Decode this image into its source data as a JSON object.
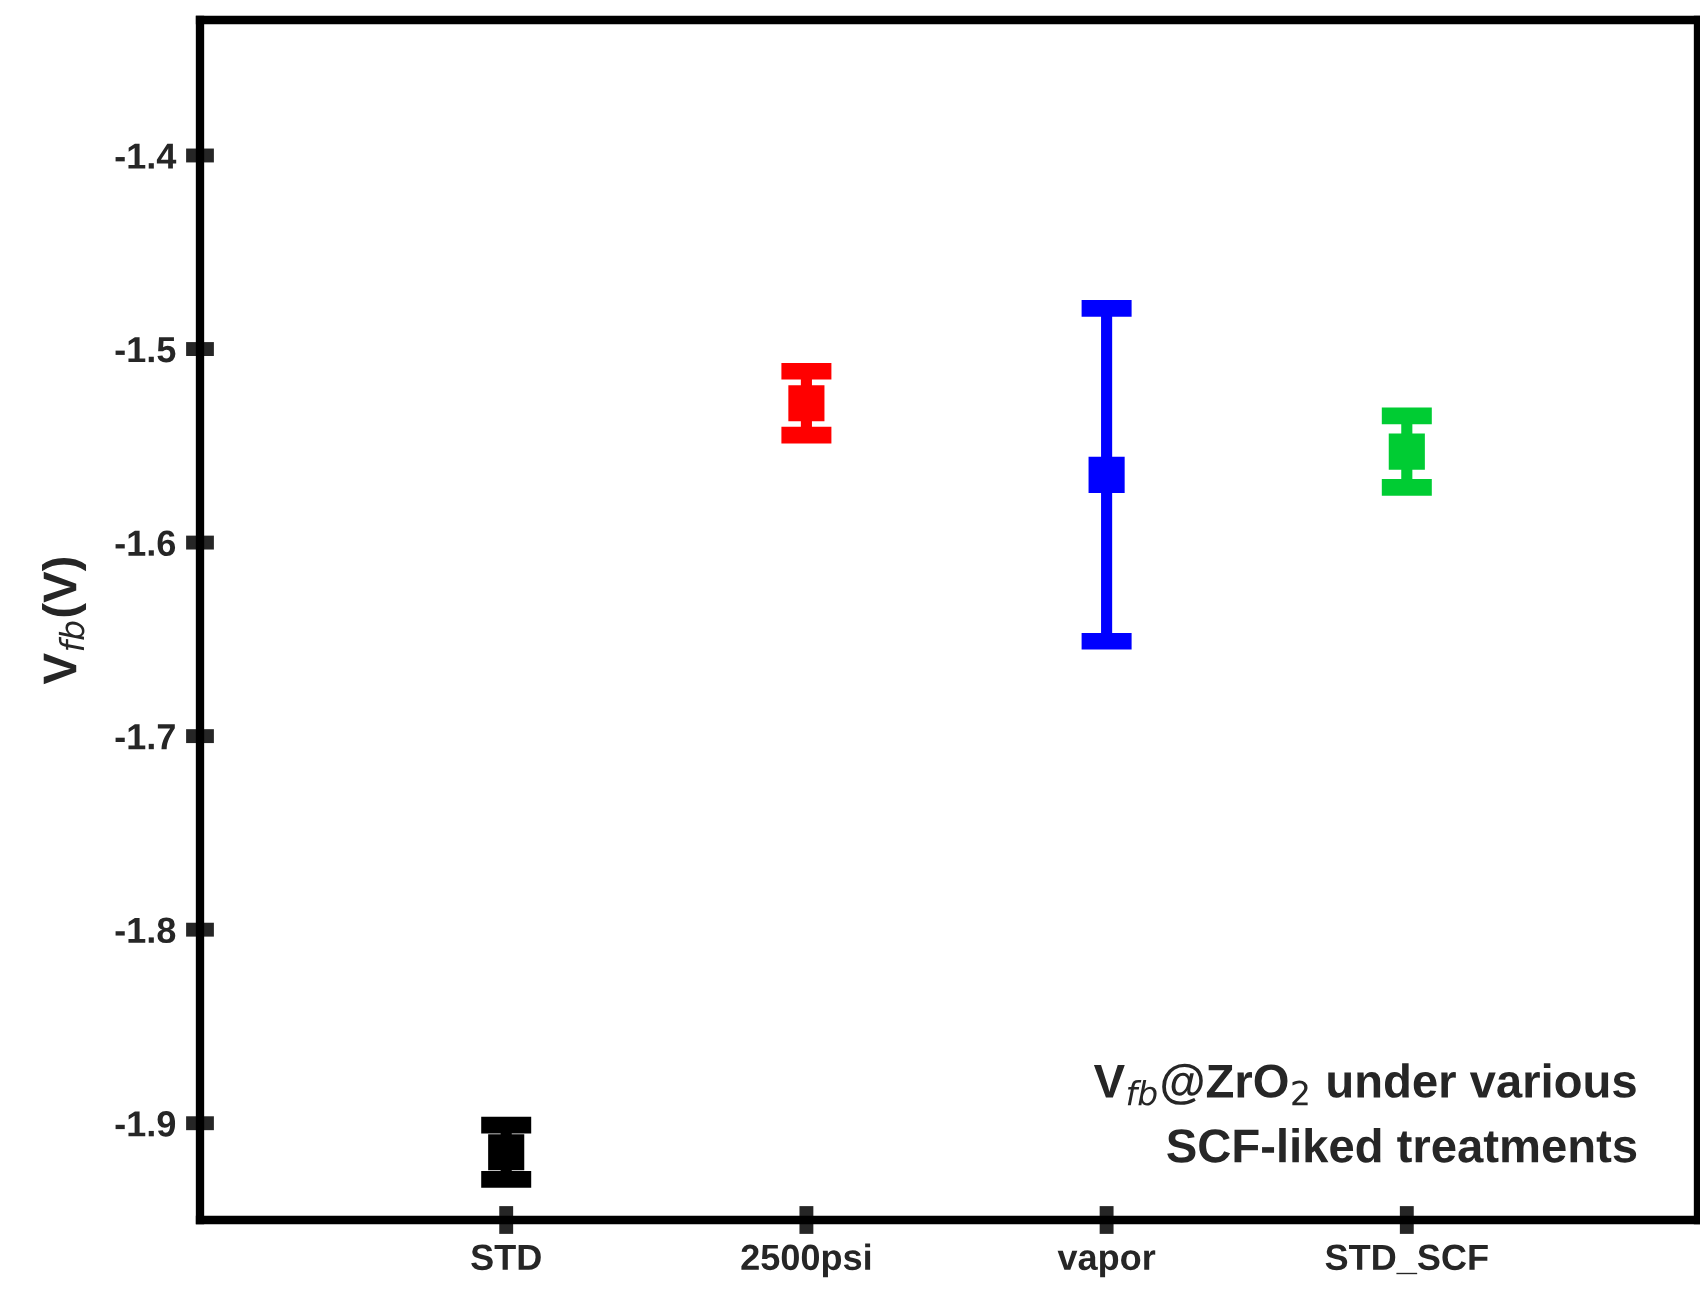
{
  "chart_data": {
    "type": "scatter",
    "ylabel": "V$_{fb}$(V)",
    "categories": [
      "STD",
      "2500psi",
      "vapor",
      "STD_SCF"
    ],
    "values": [
      -1.915,
      -1.528,
      -1.565,
      -1.553
    ],
    "errors": [
      0.014,
      0.0165,
      0.086,
      0.0185
    ],
    "colors": [
      "#000000",
      "#ff0000",
      "#0000ff",
      "#00cc33"
    ],
    "marker": "square",
    "ylim": [
      -1.95,
      -1.33
    ],
    "yticks": [
      -1.4,
      -1.5,
      -1.6,
      -1.7,
      -1.8,
      -1.9
    ],
    "grid": false,
    "legend": false,
    "annotations": [
      "V$_{fb}$@ZrO$_{2}$ under various\nSCF-liked treatments"
    ]
  }
}
